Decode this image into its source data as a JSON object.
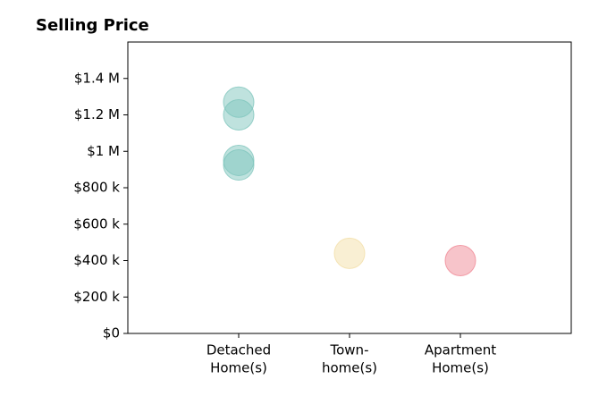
{
  "chart_data": {
    "type": "strip",
    "title": "Selling Price",
    "categories": [
      [
        "Detached",
        "Home(s)"
      ],
      [
        "Town-",
        "home(s)"
      ],
      [
        "Apartment",
        "Home(s)"
      ]
    ],
    "values": [
      [
        1270000,
        1200000,
        950000,
        925000
      ],
      [
        440000
      ],
      [
        400000
      ]
    ],
    "colors": [
      "#7fc6bd",
      "#f3dfa8",
      "#f08a96"
    ],
    "ylim": [
      0,
      1600000
    ],
    "yticks": [
      {
        "value": 0,
        "label": "$0"
      },
      {
        "value": 200000,
        "label": "$200 k"
      },
      {
        "value": 400000,
        "label": "$400 k"
      },
      {
        "value": 600000,
        "label": "$600 k"
      },
      {
        "value": 800000,
        "label": "$800 k"
      },
      {
        "value": 1000000,
        "label": "$1 M"
      },
      {
        "value": 1200000,
        "label": "$1.2 M"
      },
      {
        "value": 1400000,
        "label": "$1.4 M"
      }
    ]
  }
}
